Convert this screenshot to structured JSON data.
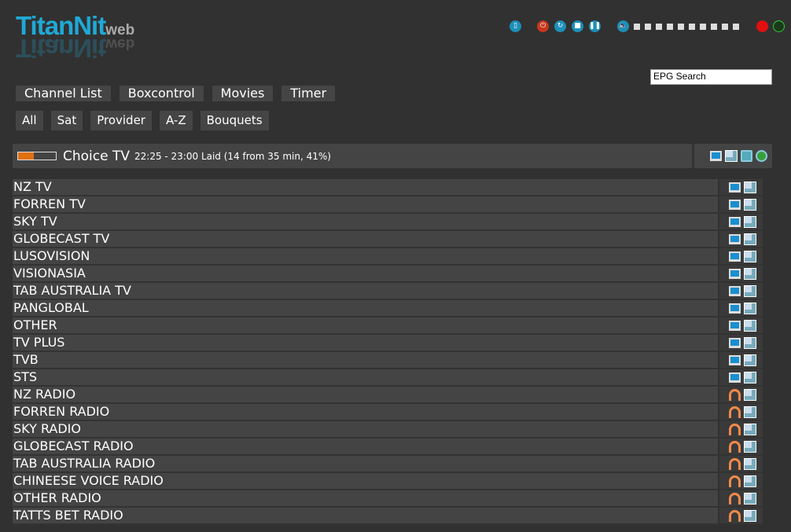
{
  "logo": {
    "title": "TitanNit",
    "suffix": "web"
  },
  "controls": {
    "icons": [
      "remote-icon",
      "power-icon",
      "restart-icon",
      "stop-icon",
      "pause-icon",
      "volume-icon"
    ],
    "volume_level": 0,
    "volume_steps": 10,
    "record": "record-icon",
    "signal": "signal-icon"
  },
  "epg_search": {
    "value": "EPG Search"
  },
  "main_nav": [
    "Channel List",
    "Boxcontrol",
    "Movies",
    "Timer"
  ],
  "filter_nav": [
    "All",
    "Sat",
    "Provider",
    "A-Z",
    "Bouquets"
  ],
  "now_playing": {
    "channel": "Choice TV",
    "info": "22:25 - 23:00 Laid (14 from 35 min, 41%)",
    "progress_percent": 41,
    "icons": [
      "tv-icon",
      "multi-view-icon",
      "epg-icon",
      "stream-icon"
    ]
  },
  "colors": {
    "accent": "#1fa9d6",
    "progress": "#e07010"
  },
  "bouquets": [
    {
      "name": "NZ TV",
      "type": "tv"
    },
    {
      "name": "FORREN TV",
      "type": "tv"
    },
    {
      "name": "SKY TV",
      "type": "tv"
    },
    {
      "name": "GLOBECAST TV",
      "type": "tv"
    },
    {
      "name": "LUSOVISION",
      "type": "tv"
    },
    {
      "name": "VISIONASIA",
      "type": "tv"
    },
    {
      "name": "TAB AUSTRALIA TV",
      "type": "tv"
    },
    {
      "name": "PANGLOBAL",
      "type": "tv"
    },
    {
      "name": "OTHER",
      "type": "tv"
    },
    {
      "name": "TV PLUS",
      "type": "tv"
    },
    {
      "name": "TVB",
      "type": "tv"
    },
    {
      "name": "STS",
      "type": "tv"
    },
    {
      "name": "NZ RADIO",
      "type": "radio"
    },
    {
      "name": "FORREN RADIO",
      "type": "radio"
    },
    {
      "name": "SKY RADIO",
      "type": "radio"
    },
    {
      "name": "GLOBECAST RADIO",
      "type": "radio"
    },
    {
      "name": "TAB AUSTRALIA RADIO",
      "type": "radio"
    },
    {
      "name": "CHINEESE VOICE RADIO",
      "type": "radio"
    },
    {
      "name": "OTHER RADIO",
      "type": "radio"
    },
    {
      "name": "TATTS BET RADIO",
      "type": "radio"
    }
  ]
}
